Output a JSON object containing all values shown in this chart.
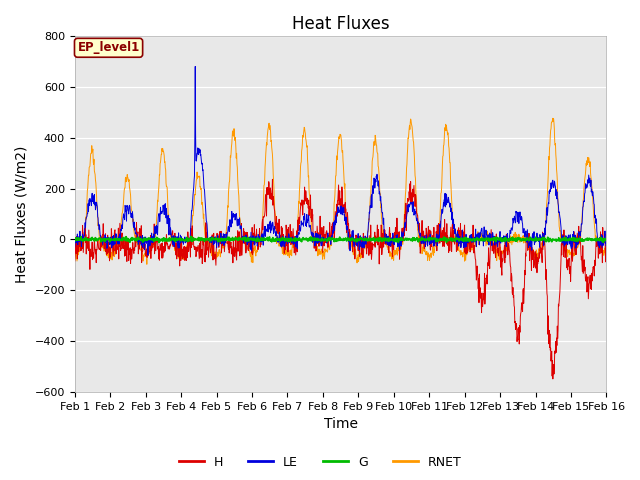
{
  "title": "Heat Fluxes",
  "xlabel": "Time",
  "ylabel": "Heat Fluxes (W/m2)",
  "ylim": [
    -600,
    800
  ],
  "yticks": [
    -600,
    -400,
    -200,
    0,
    200,
    400,
    600,
    800
  ],
  "n_days": 15,
  "n_per_day": 96,
  "x_tick_labels": [
    "Feb 1",
    "Feb 2",
    "Feb 3",
    "Feb 4",
    "Feb 5",
    "Feb 6",
    "Feb 7",
    "Feb 8",
    "Feb 9",
    "Feb 10",
    "Feb 11",
    "Feb 12",
    "Feb 13",
    "Feb 14",
    "Feb 15",
    "Feb 16"
  ],
  "colors": {
    "H": "#dd0000",
    "LE": "#0000dd",
    "G": "#00bb00",
    "RNET": "#ff9900"
  },
  "bg_color": "#e8e8e8",
  "fig_color": "#ffffff",
  "label_box_text": "EP_level1",
  "label_box_facecolor": "#ffffcc",
  "label_box_edgecolor": "#8b0000",
  "title_fontsize": 12,
  "axis_label_fontsize": 10,
  "tick_fontsize": 8
}
